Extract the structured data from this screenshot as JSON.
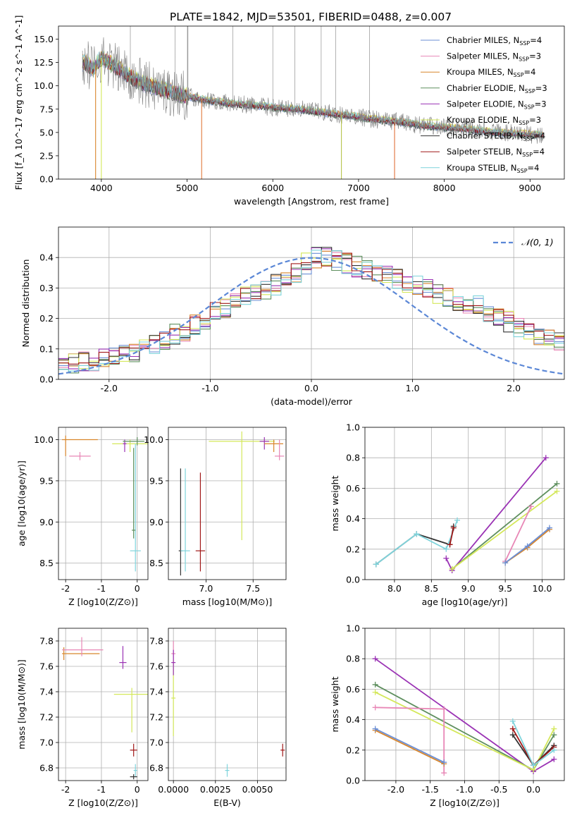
{
  "figure": {
    "title": "PLATE=1842, MJD=53501, FIBERID=0488, z=0.007"
  },
  "chart_data": [
    {
      "id": "spectrum",
      "type": "line",
      "xlabel": "wavelength [Angstrom, rest frame]",
      "ylabel": "Flux [f_λ 10^-17 erg cm^-2 s^-1 A^-1]",
      "xlim": [
        3500,
        9400
      ],
      "ylim": [
        0,
        16.4
      ],
      "xticks": [
        4000,
        5000,
        6000,
        7000,
        8000,
        9000
      ],
      "yticks": [
        0.0,
        2.5,
        5.0,
        7.5,
        10.0,
        12.5,
        15.0
      ],
      "grid": false,
      "legend_position": "top-right",
      "observed": {
        "color": "#808080",
        "wavelength": [
          3800,
          3900,
          4000,
          4100,
          4300,
          4500,
          4800,
          5000,
          5200,
          5500,
          5800,
          6000,
          6300,
          6600,
          6900,
          7200,
          7500,
          7800,
          8200,
          8600,
          9000,
          9150
        ],
        "flux": [
          12.5,
          11.8,
          13.0,
          12.4,
          11.2,
          10.2,
          9.4,
          8.9,
          8.5,
          8.1,
          7.9,
          7.7,
          7.5,
          7.1,
          6.8,
          6.4,
          6.1,
          5.7,
          5.4,
          5.0,
          4.8,
          4.7
        ]
      },
      "emission_lines": [
        4340,
        4861,
        5007,
        5530,
        6000,
        6260,
        6563,
        6730,
        7130
      ],
      "absorption_lines": [
        3933,
        4000,
        5170,
        6800,
        7420
      ],
      "series": [
        {
          "name": "Chabrier MILES",
          "nssp": "4",
          "color": "#6b8fd6"
        },
        {
          "name": "Salpeter MILES",
          "nssp": "3",
          "color": "#e887b6"
        },
        {
          "name": "Kroupa MILES",
          "nssp": "4",
          "color": "#d8862c"
        },
        {
          "name": "Chabrier ELODIE",
          "nssp": "3",
          "color": "#5e8f5e"
        },
        {
          "name": "Salpeter ELODIE",
          "nssp": "3",
          "color": "#9a32b4"
        },
        {
          "name": "Kroupa ELODIE",
          "nssp": "3",
          "color": "#d4e85a"
        },
        {
          "name": "Chabrier STELIB",
          "nssp": "4",
          "color": "#333333"
        },
        {
          "name": "Salpeter STELIB",
          "nssp": "4",
          "color": "#a01818"
        },
        {
          "name": "Kroupa STELIB",
          "nssp": "4",
          "color": "#7fd4dc"
        }
      ]
    },
    {
      "id": "residuals",
      "type": "line",
      "xlabel": "(data-model)/error",
      "ylabel": "Normed distribution",
      "xlim": [
        -2.5,
        2.5
      ],
      "ylim": [
        0,
        0.5
      ],
      "xticks": [
        -2,
        -1,
        0,
        1,
        2
      ],
      "yticks": [
        0.0,
        0.1,
        0.2,
        0.3,
        0.4
      ],
      "grid": true,
      "legend_position": "top-right",
      "reference_curve": {
        "name": "𝒩(0, 1)",
        "mean": 0,
        "sigma": 1,
        "color": "#5b87d6",
        "style": "dashed"
      },
      "bin_edges_range": [
        -2.5,
        2.5
      ],
      "bin_width": 0.1,
      "histogram_shape": [
        0.05,
        0.05,
        0.06,
        0.06,
        0.07,
        0.07,
        0.08,
        0.09,
        0.1,
        0.11,
        0.13,
        0.15,
        0.16,
        0.18,
        0.2,
        0.22,
        0.23,
        0.25,
        0.27,
        0.28,
        0.29,
        0.31,
        0.33,
        0.35,
        0.38,
        0.4,
        0.4,
        0.39,
        0.38,
        0.37,
        0.36,
        0.35,
        0.34,
        0.33,
        0.32,
        0.31,
        0.3,
        0.28,
        0.27,
        0.26,
        0.25,
        0.24,
        0.22,
        0.2,
        0.19,
        0.17,
        0.16,
        0.14,
        0.13,
        0.12
      ],
      "series_colors": [
        "#6b8fd6",
        "#e887b6",
        "#d8862c",
        "#5e8f5e",
        "#9a32b4",
        "#d4e85a",
        "#333333",
        "#a01818",
        "#7fd4dc"
      ]
    },
    {
      "id": "age_vs_Z",
      "type": "scatter",
      "xlabel": "Z [log10(Z/Z⊙)]",
      "ylabel": "age [log10(age/yr)]",
      "xlim": [
        -2.2,
        0.3
      ],
      "ylim": [
        8.3,
        10.15
      ],
      "xticks": [
        -2,
        -1,
        0
      ],
      "yticks": [
        8.5,
        9.0,
        9.5,
        10.0
      ],
      "grid": true,
      "points": [
        {
          "x": -2.0,
          "y": 10.0,
          "xerr": [
            0.1,
            0.9
          ],
          "yerr": [
            0.2,
            0.05
          ],
          "color": "#d8862c"
        },
        {
          "x": -1.6,
          "y": 9.8,
          "xerr": [
            0.3,
            0.3
          ],
          "yerr": [
            0.05,
            0.05
          ],
          "color": "#e887b6"
        },
        {
          "x": -0.2,
          "y": 9.95,
          "xerr": [
            0.5,
            0.5
          ],
          "yerr": [
            0.1,
            0.05
          ],
          "color": "#d4e85a"
        },
        {
          "x": -0.35,
          "y": 9.95,
          "xerr": [
            0.05,
            0.05
          ],
          "yerr": [
            0.1,
            0.05
          ],
          "color": "#9a32b4"
        },
        {
          "x": 0.0,
          "y": 9.98,
          "xerr": [
            0.4,
            0.2
          ],
          "yerr": [
            0.05,
            0.05
          ],
          "color": "#5e8f5e"
        },
        {
          "x": -0.05,
          "y": 8.65,
          "xerr": [
            0.15,
            0.15
          ],
          "yerr": [
            0.25,
            1.3
          ],
          "color": "#7fd4dc"
        },
        {
          "x": -0.1,
          "y": 8.9,
          "xerr": [
            0.05,
            0.05
          ],
          "yerr": [
            0.1,
            1.0
          ],
          "color": "#5e8f5e"
        }
      ]
    },
    {
      "id": "age_vs_mass",
      "type": "scatter",
      "xlabel": "mass [log10(M/M⊙)]",
      "ylabel": "",
      "xlim": [
        6.6,
        7.85
      ],
      "ylim": [
        8.3,
        10.15
      ],
      "xticks": [
        7.0,
        7.5
      ],
      "yticks": [
        8.5,
        9.0,
        9.5,
        10.0
      ],
      "grid": true,
      "points": [
        {
          "x": 6.73,
          "y": 8.65,
          "xerr": [
            0.02,
            0.02
          ],
          "yerr": [
            0.3,
            1.0
          ],
          "color": "#333333"
        },
        {
          "x": 6.78,
          "y": 8.65,
          "xerr": [
            0.05,
            0.05
          ],
          "yerr": [
            0.25,
            1.0
          ],
          "color": "#7fd4dc"
        },
        {
          "x": 6.94,
          "y": 8.65,
          "xerr": [
            0.05,
            0.05
          ],
          "yerr": [
            0.25,
            0.95
          ],
          "color": "#a01818"
        },
        {
          "x": 7.38,
          "y": 9.98,
          "xerr": [
            0.35,
            0.35
          ],
          "yerr": [
            1.2,
            0.12
          ],
          "color": "#d4e85a"
        },
        {
          "x": 7.62,
          "y": 9.98,
          "xerr": [
            0.05,
            0.05
          ],
          "yerr": [
            0.1,
            0.05
          ],
          "color": "#9a32b4"
        },
        {
          "x": 7.72,
          "y": 9.95,
          "xerr": [
            0.1,
            0.1
          ],
          "yerr": [
            0.1,
            0.05
          ],
          "color": "#d8862c"
        },
        {
          "x": 7.78,
          "y": 9.8,
          "xerr": [
            0.05,
            0.05
          ],
          "yerr": [
            0.05,
            0.2
          ],
          "color": "#e887b6"
        }
      ]
    },
    {
      "id": "mass_weight_vs_age",
      "type": "line",
      "xlabel": "age [log10(age/yr)]",
      "ylabel": "mass weight",
      "xlim": [
        7.6,
        10.3
      ],
      "ylim": [
        0,
        1.0
      ],
      "xticks": [
        8.0,
        8.5,
        9.0,
        9.5,
        10.0
      ],
      "yticks": [
        0.0,
        0.2,
        0.4,
        0.6,
        0.8,
        1.0
      ],
      "grid": true,
      "series": [
        {
          "color": "#333333",
          "x": [
            7.75,
            8.3,
            8.75,
            8.8
          ],
          "y": [
            0.1,
            0.3,
            0.23,
            0.35
          ]
        },
        {
          "color": "#7fd4dc",
          "x": [
            7.75,
            8.3,
            8.7,
            8.85
          ],
          "y": [
            0.1,
            0.3,
            0.2,
            0.39
          ]
        },
        {
          "color": "#a01818",
          "x": [
            8.75,
            8.8
          ],
          "y": [
            0.23,
            0.34
          ]
        },
        {
          "color": "#9a32b4",
          "x": [
            8.7,
            8.78,
            10.05
          ],
          "y": [
            0.14,
            0.06,
            0.8
          ]
        },
        {
          "color": "#5e8f5e",
          "x": [
            8.78,
            10.2
          ],
          "y": [
            0.07,
            0.63
          ]
        },
        {
          "color": "#d4e85a",
          "x": [
            8.78,
            10.2
          ],
          "y": [
            0.07,
            0.58
          ]
        },
        {
          "color": "#e887b6",
          "x": [
            9.5,
            9.85
          ],
          "y": [
            0.12,
            0.48
          ]
        },
        {
          "color": "#d8862c",
          "x": [
            9.5,
            9.8,
            10.1
          ],
          "y": [
            0.11,
            0.21,
            0.33
          ]
        },
        {
          "color": "#6b8fd6",
          "x": [
            9.5,
            9.8,
            10.1
          ],
          "y": [
            0.11,
            0.22,
            0.34
          ]
        }
      ]
    },
    {
      "id": "mass_vs_Z",
      "type": "scatter",
      "xlabel": "Z [log10(Z/Z⊙)]",
      "ylabel": "mass [log10(M/M⊙)]",
      "xlim": [
        -2.2,
        0.3
      ],
      "ylim": [
        6.7,
        7.9
      ],
      "xticks": [
        -2,
        -1,
        0
      ],
      "yticks": [
        6.8,
        7.0,
        7.2,
        7.4,
        7.6,
        7.8
      ],
      "grid": true,
      "points": [
        {
          "x": -2.05,
          "y": 7.7,
          "xerr": [
            0.05,
            1.0
          ],
          "yerr": [
            0.05,
            0.05
          ],
          "color": "#d8862c"
        },
        {
          "x": -1.55,
          "y": 7.73,
          "xerr": [
            0.55,
            0.6
          ],
          "yerr": [
            0.05,
            0.1
          ],
          "color": "#e887b6"
        },
        {
          "x": -0.4,
          "y": 7.63,
          "xerr": [
            0.1,
            0.1
          ],
          "yerr": [
            0.05,
            0.13
          ],
          "color": "#9a32b4"
        },
        {
          "x": -0.15,
          "y": 7.38,
          "xerr": [
            0.5,
            0.5
          ],
          "yerr": [
            0.3,
            0.05
          ],
          "color": "#d4e85a"
        },
        {
          "x": -0.1,
          "y": 6.94,
          "xerr": [
            0.1,
            0.1
          ],
          "yerr": [
            0.05,
            0.05
          ],
          "color": "#a01818"
        },
        {
          "x": -0.05,
          "y": 6.78,
          "xerr": [
            0.05,
            0.05
          ],
          "yerr": [
            0.05,
            0.05
          ],
          "color": "#7fd4dc"
        },
        {
          "x": -0.1,
          "y": 6.73,
          "xerr": [
            0.1,
            0.1
          ],
          "yerr": [
            0.02,
            0.02
          ],
          "color": "#333333"
        }
      ]
    },
    {
      "id": "mass_vs_ebv",
      "type": "scatter",
      "xlabel": "E(B-V)",
      "ylabel": "",
      "xlim": [
        -0.0003,
        0.0067
      ],
      "ylim": [
        6.7,
        7.9
      ],
      "xticks": [
        0.0,
        0.0025,
        0.005
      ],
      "xticklabels": [
        "0.0000",
        "0.0025",
        "0.0050"
      ],
      "yticks": [
        6.8,
        7.0,
        7.2,
        7.4,
        7.6,
        7.8
      ],
      "grid": true,
      "points": [
        {
          "x": 0.0,
          "y": 7.7,
          "yerr": [
            0.1,
            0.1
          ],
          "color": "#e887b6"
        },
        {
          "x": 0.0,
          "y": 7.35,
          "yerr": [
            0.3,
            0.3
          ],
          "color": "#d4e85a"
        },
        {
          "x": 0.0,
          "y": 7.63,
          "yerr": [
            0.1,
            0.1
          ],
          "color": "#9a32b4"
        },
        {
          "x": 0.0032,
          "y": 6.78,
          "yerr": [
            0.05,
            0.05
          ],
          "color": "#7fd4dc"
        },
        {
          "x": 0.0065,
          "y": 6.94,
          "yerr": [
            0.05,
            0.05
          ],
          "color": "#a01818"
        }
      ]
    },
    {
      "id": "mass_weight_vs_Z",
      "type": "line",
      "xlabel": "Z [log10(Z/Z⊙)]",
      "ylabel": "mass weight",
      "xlim": [
        -2.45,
        0.45
      ],
      "ylim": [
        0,
        1.0
      ],
      "xticks": [
        -2.0,
        -1.5,
        -1.0,
        -0.5,
        0.0
      ],
      "yticks": [
        0.0,
        0.2,
        0.4,
        0.6,
        0.8,
        1.0
      ],
      "grid": true,
      "series": [
        {
          "color": "#9a32b4",
          "x": [
            -2.3,
            0.0,
            0.3
          ],
          "y": [
            0.8,
            0.06,
            0.14
          ]
        },
        {
          "color": "#5e8f5e",
          "x": [
            -2.3,
            0.0,
            0.3
          ],
          "y": [
            0.63,
            0.07,
            0.3
          ]
        },
        {
          "color": "#d4e85a",
          "x": [
            -2.3,
            0.0,
            0.3
          ],
          "y": [
            0.58,
            0.07,
            0.34
          ]
        },
        {
          "color": "#e887b6",
          "x": [
            -2.3,
            -1.3,
            -1.3
          ],
          "y": [
            0.48,
            0.47,
            0.05
          ]
        },
        {
          "color": "#d8862c",
          "x": [
            -2.3,
            -1.3
          ],
          "y": [
            0.33,
            0.11
          ]
        },
        {
          "color": "#6b8fd6",
          "x": [
            -2.3,
            -1.3
          ],
          "y": [
            0.34,
            0.12
          ]
        },
        {
          "color": "#333333",
          "x": [
            -0.3,
            0.0,
            0.3
          ],
          "y": [
            0.3,
            0.1,
            0.23
          ]
        },
        {
          "color": "#a01818",
          "x": [
            -0.3,
            0.0,
            0.3
          ],
          "y": [
            0.34,
            0.1,
            0.22
          ]
        },
        {
          "color": "#7fd4dc",
          "x": [
            -0.3,
            0.0,
            0.3
          ],
          "y": [
            0.39,
            0.1,
            0.2
          ]
        }
      ]
    }
  ]
}
